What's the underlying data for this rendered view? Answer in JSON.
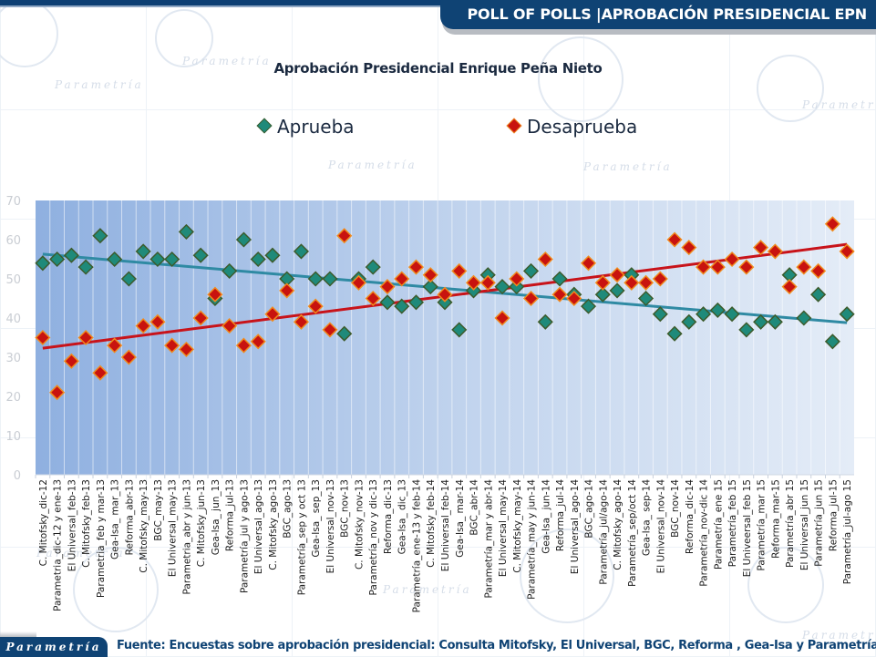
{
  "header": {
    "title": "POLL OF POLLS |APROBACIÓN PRESIDENCIAL EPN"
  },
  "footer": {
    "logo": "Parametría",
    "source": "Fuente: Encuestas sobre aprobación presidencial: Consulta Mitofsky, El Universal, BGC, Reforma , Gea-Isa y Parametría."
  },
  "watermark_text": "Parametría",
  "colors": {
    "brand": "#0f4374",
    "aprueba": "#1f8a7a",
    "aprueba_trend": "#2f8aa3",
    "desaprueba": "#c8130f",
    "desaprueba_border": "#f08a1c",
    "desaprueba_trend": "#c8131a"
  },
  "chart_data": {
    "type": "scatter",
    "title": "Aprobación Presidencial Enrique Peña Nieto",
    "xlabel": "",
    "ylabel": "",
    "ylim": [
      0,
      70
    ],
    "yticks": [
      0,
      10,
      20,
      30,
      40,
      50,
      60,
      70
    ],
    "grid": "vertical",
    "legend_position": "top",
    "categories": [
      "C. Mitofsky_dic-12",
      "Parametria_dic-12 y ene-13",
      "El Universal_feb-13",
      "C. Mitofsky_feb-13",
      "Parametria_feb y mar-13",
      "Gea-Isa_ mar_13",
      "Reforma_abr-13",
      "C. Mitofsky_may-13",
      "BGC_may-13",
      "El Universal_may-13",
      "Parametria_abr y jun-13",
      "C. Mitofsky_jun-13",
      "Gea-Isa_ jun_13",
      "Reforma_jul-13",
      "Parametría_jul y ago-13",
      "El Universal_ago-13",
      "C. Mitofsky_ago-13",
      "BGC_ago-13",
      "Parametría_sep y oct 13",
      "Gea-Isa_ sep_13",
      "El Universal_nov-13",
      "BGC_nov-13",
      "C. Mitofsky_nov-13",
      "Parametría_nov y dic-13",
      "Reforma_dic-13",
      "Gea-Isa_ dic_13",
      "Parametría_ene-13 y feb-14",
      "C. Mitofsky_feb-14",
      "El Universal_feb-14",
      "Gea-Isa_ mar-14",
      "BGC_abr-14",
      "Parametría_mar y abr-14",
      "El Universal_may-14",
      "C. Mitofsky_may-14",
      "Parametría_may y jun-14",
      "Gea-Isa_ jun-14",
      "Reforma_jul-14",
      "El Universal_ago-14",
      "BGC_ago-14",
      "Parametría_jul/ago-14",
      "C. Mitofsky_ago-14",
      "Parametría_sep/oct 14",
      "Gea-Isa_ sep-14",
      "El Universal_nov-14",
      "BGC_nov-14",
      "Reforma_dic-14",
      "Parametría_nov-dic 14",
      "Parametría_ene 15",
      "Parametría_feb 15",
      "El Univeersal_feb 15",
      "Parametría_mar 15",
      "Reforma_mar-15",
      "Parametría_abr 15",
      "El Universal_jun 15",
      "Parametría_jun 15",
      "Reforma_jul-15",
      "Parametría_jul-ago 15"
    ],
    "series": [
      {
        "name": "Aprueba",
        "marker": "diamond",
        "values": [
          54,
          55,
          56,
          53,
          61,
          55,
          50,
          57,
          55,
          55,
          62,
          56,
          45,
          52,
          60,
          55,
          56,
          50,
          57,
          50,
          50,
          36,
          50,
          53,
          44,
          43,
          44,
          48,
          44,
          37,
          47,
          51,
          48,
          48,
          52,
          39,
          50,
          46,
          43,
          46,
          47,
          51,
          45,
          41,
          36,
          39,
          41,
          42,
          41,
          37,
          39,
          39,
          51,
          40,
          46,
          34,
          41
        ],
        "trend": [
          56.3,
          38.8
        ]
      },
      {
        "name": "Desaprueba",
        "marker": "diamond",
        "values": [
          35,
          21,
          29,
          35,
          26,
          33,
          30,
          38,
          39,
          33,
          32,
          40,
          46,
          38,
          33,
          34,
          41,
          47,
          39,
          43,
          37,
          61,
          49,
          45,
          48,
          50,
          53,
          51,
          46,
          52,
          49,
          49,
          40,
          50,
          45,
          55,
          46,
          45,
          54,
          49,
          51,
          49,
          49,
          50,
          60,
          58,
          53,
          53,
          55,
          53,
          58,
          57,
          48,
          53,
          52,
          64,
          57
        ],
        "trend": [
          32.3,
          58.8
        ]
      }
    ]
  }
}
